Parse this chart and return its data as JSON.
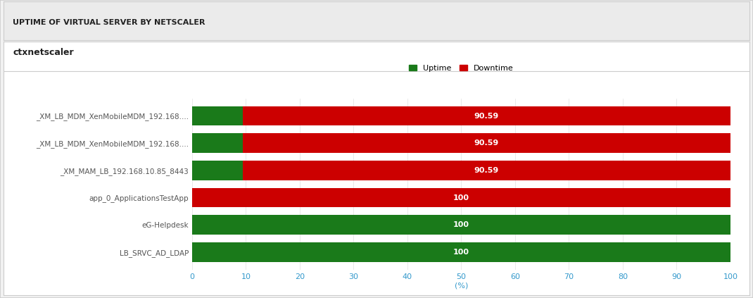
{
  "title": "UPTIME OF VIRTUAL SERVER BY NETSCALER",
  "subtitle": "ctxnetscaler",
  "categories": [
    "_XM_LB_MDM_XenMobileMDM_192.168....",
    "_XM_LB_MDM_XenMobileMDM_192.168....",
    "_XM_MAM_LB_192.168.10.85_8443",
    "app_0_ApplicationsTestApp",
    "eG-Helpdesk",
    "LB_SRVC_AD_LDAP"
  ],
  "uptime": [
    9.41,
    9.41,
    9.41,
    0,
    100,
    100
  ],
  "downtime": [
    90.59,
    90.59,
    90.59,
    100,
    0,
    0
  ],
  "uptime_color": "#1a7a1a",
  "downtime_color": "#cc0000",
  "bar_labels": [
    "90.59",
    "90.59",
    "90.59",
    "100",
    "100",
    "100"
  ],
  "xlabel": "(%)",
  "xlim": [
    0,
    100
  ],
  "xticks": [
    0,
    10,
    20,
    30,
    40,
    50,
    60,
    70,
    80,
    90,
    100
  ],
  "legend_uptime_label": "Uptime",
  "legend_downtime_label": "Downtime",
  "title_fontsize": 8,
  "subtitle_fontsize": 9,
  "tick_fontsize": 8,
  "label_fontsize": 7.5,
  "legend_fontsize": 8,
  "bar_height": 0.72,
  "outer_bg": "#f2f2f2",
  "inner_bg": "#ffffff",
  "title_bg": "#ebebeb",
  "border_color": "#cccccc",
  "tick_color": "#3399cc",
  "ylabel_color": "#555555"
}
